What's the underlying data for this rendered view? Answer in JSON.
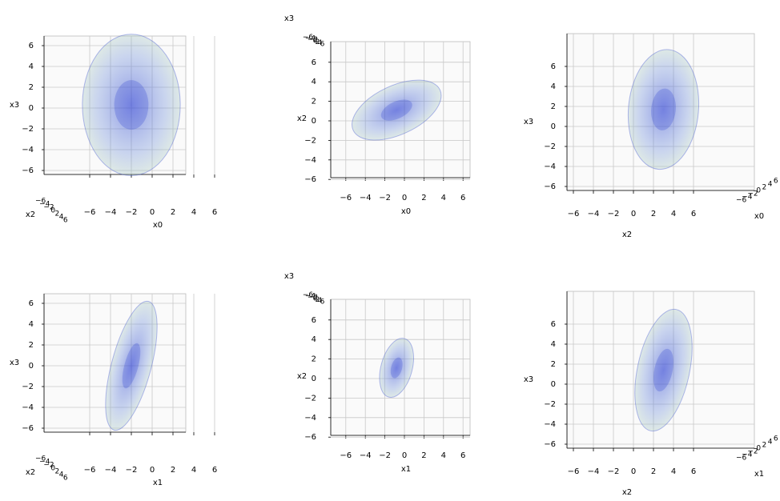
{
  "chart_data": [
    {
      "type": "scatter3d",
      "depth_side": "left",
      "xlabel": "x0",
      "ylabel": "x3",
      "zlabel": "x2",
      "xlim": [
        -7,
        7
      ],
      "ylim": [
        -7,
        7
      ],
      "zlim": [
        -7,
        7
      ],
      "xticks": [
        {
          "value": -6,
          "label": "−6"
        },
        {
          "value": -4,
          "label": "−4"
        },
        {
          "value": -2,
          "label": "−2"
        },
        0,
        2,
        4,
        6
      ],
      "yticks": [
        {
          "value": -6,
          "label": "−6"
        },
        {
          "value": -4,
          "label": "−4"
        },
        {
          "value": -2,
          "label": "−2"
        },
        0,
        2,
        4,
        6
      ],
      "zticks": [
        {
          "value": -6,
          "label": "−6"
        },
        {
          "value": -4,
          "label": "−4"
        },
        {
          "value": -2,
          "label": "−2"
        },
        0,
        2,
        4,
        6
      ],
      "cloud": {
        "center": [
          -2,
          0.3
        ],
        "radii": [
          4.7,
          6.8
        ],
        "angle": 0,
        "color": "#2a3fd0"
      }
    },
    {
      "type": "scatter3d",
      "depth_side": "top",
      "xlabel": "x0",
      "ylabel": "x2",
      "zlabel": "x3",
      "xlim": [
        -7,
        7
      ],
      "ylim": [
        -7,
        7
      ],
      "zlim": [
        -7,
        7
      ],
      "xticks": [
        {
          "value": -6,
          "label": "−6"
        },
        {
          "value": -4,
          "label": "−4"
        },
        {
          "value": -2,
          "label": "−2"
        },
        0,
        2,
        4,
        6
      ],
      "yticks": [
        {
          "value": -6,
          "label": "−6"
        },
        {
          "value": -4,
          "label": "−4"
        },
        {
          "value": -2,
          "label": "−2"
        },
        0,
        2,
        4,
        6
      ],
      "zticks": [
        {
          "value": -6,
          "label": "−6"
        },
        {
          "value": -4,
          "label": "−4"
        },
        {
          "value": -2,
          "label": "−2"
        },
        0,
        2,
        4,
        6
      ],
      "cloud": {
        "center": [
          -0.8,
          1.1
        ],
        "radii": [
          4.9,
          2.5
        ],
        "angle": 25,
        "color": "#2a3fd0"
      }
    },
    {
      "type": "scatter3d",
      "depth_side": "right",
      "xlabel": "x2",
      "ylabel": "x3",
      "zlabel": "x0",
      "xlim": [
        -7,
        7
      ],
      "ylim": [
        -7,
        7
      ],
      "zlim": [
        -7,
        7
      ],
      "xticks": [
        {
          "value": -6,
          "label": "−6"
        },
        {
          "value": -4,
          "label": "−4"
        },
        {
          "value": -2,
          "label": "−2"
        },
        0,
        2,
        4,
        6
      ],
      "yticks": [
        {
          "value": -6,
          "label": "−6"
        },
        {
          "value": -4,
          "label": "−4"
        },
        {
          "value": -2,
          "label": "−2"
        },
        0,
        2,
        4,
        6
      ],
      "zticks": [
        {
          "value": -6,
          "label": "−6"
        },
        {
          "value": -4,
          "label": "−4"
        },
        {
          "value": -2,
          "label": "−2"
        },
        0,
        2,
        4,
        6
      ],
      "cloud": {
        "center": [
          3,
          1.7
        ],
        "radii": [
          3.5,
          6
        ],
        "angle": -5,
        "color": "#2a3fd0"
      }
    },
    {
      "type": "scatter3d",
      "depth_side": "left",
      "xlabel": "x1",
      "ylabel": "x3",
      "zlabel": "x2",
      "xlim": [
        -7,
        7
      ],
      "ylim": [
        -7,
        7
      ],
      "zlim": [
        -7,
        7
      ],
      "xticks": [
        {
          "value": -6,
          "label": "−6"
        },
        {
          "value": -4,
          "label": "−4"
        },
        {
          "value": -2,
          "label": "−2"
        },
        0,
        2,
        4,
        6
      ],
      "yticks": [
        {
          "value": -6,
          "label": "−6"
        },
        {
          "value": -4,
          "label": "−4"
        },
        {
          "value": -2,
          "label": "−2"
        },
        0,
        2,
        4,
        6
      ],
      "zticks": [
        {
          "value": -6,
          "label": "−6"
        },
        {
          "value": -4,
          "label": "−4"
        },
        {
          "value": -2,
          "label": "−2"
        },
        0,
        2,
        4,
        6
      ],
      "cloud": {
        "center": [
          -2,
          0
        ],
        "radii": [
          1.9,
          6.4
        ],
        "angle": -15,
        "color": "#2a3fd0"
      }
    },
    {
      "type": "scatter3d",
      "depth_side": "top",
      "xlabel": "x1",
      "ylabel": "x2",
      "zlabel": "x3",
      "xlim": [
        -7,
        7
      ],
      "ylim": [
        -7,
        7
      ],
      "zlim": [
        -7,
        7
      ],
      "xticks": [
        {
          "value": -6,
          "label": "−6"
        },
        {
          "value": -4,
          "label": "−4"
        },
        {
          "value": -2,
          "label": "−2"
        },
        0,
        2,
        4,
        6
      ],
      "yticks": [
        {
          "value": -6,
          "label": "−6"
        },
        {
          "value": -4,
          "label": "−4"
        },
        {
          "value": -2,
          "label": "−2"
        },
        0,
        2,
        4,
        6
      ],
      "zticks": [
        {
          "value": -6,
          "label": "−6"
        },
        {
          "value": -4,
          "label": "−4"
        },
        {
          "value": -2,
          "label": "−2"
        },
        0,
        2,
        4,
        6
      ],
      "cloud": {
        "center": [
          -0.8,
          1.1
        ],
        "radii": [
          1.6,
          3.1
        ],
        "angle": -15,
        "color": "#2a3fd0"
      }
    },
    {
      "type": "scatter3d",
      "depth_side": "right",
      "xlabel": "x2",
      "ylabel": "x3",
      "zlabel": "x1",
      "xlim": [
        -7,
        7
      ],
      "ylim": [
        -7,
        7
      ],
      "zlim": [
        -7,
        7
      ],
      "xticks": [
        {
          "value": -6,
          "label": "−6"
        },
        {
          "value": -4,
          "label": "−4"
        },
        {
          "value": -2,
          "label": "−2"
        },
        0,
        2,
        4,
        6
      ],
      "yticks": [
        {
          "value": -6,
          "label": "−6"
        },
        {
          "value": -4,
          "label": "−4"
        },
        {
          "value": -2,
          "label": "−2"
        },
        0,
        2,
        4,
        6
      ],
      "zticks": [
        {
          "value": -6,
          "label": "−6"
        },
        {
          "value": -4,
          "label": "−4"
        },
        {
          "value": -2,
          "label": "−2"
        },
        0,
        2,
        4,
        6
      ],
      "cloud": {
        "center": [
          3,
          1.4
        ],
        "radii": [
          2.6,
          6.2
        ],
        "angle": -12,
        "color": "#2a3fd0"
      }
    }
  ]
}
